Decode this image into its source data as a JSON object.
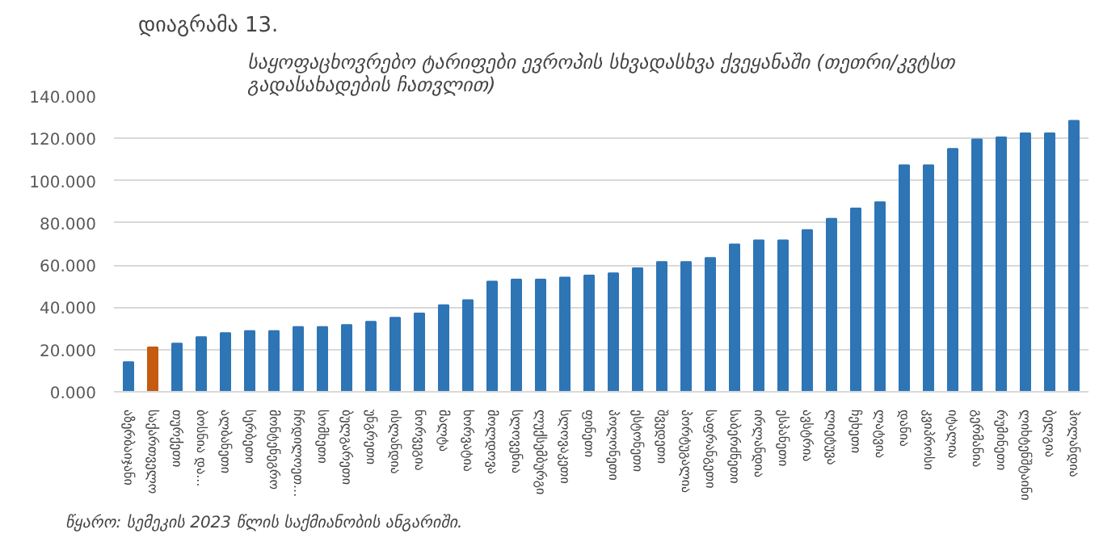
{
  "chart_data": {
    "type": "bar",
    "title": "საყოფაცხოვრებო ტარიფები ევროპის სხვადასხვა ქვეყანაში (თეთრი/კვტსთ\nგადასახადების ჩათვლით)",
    "annotations": [
      "დიაგრამა 13.",
      "წყარო: სემეკის 2023 წლის საქმიანობის ანგარიში."
    ],
    "categories": [
      "აზერბაიჯანი",
      "საქართველო",
      "თურქეთი",
      "ბოსნია და...",
      "ალბანეთი",
      "სერბეთი",
      "მონტენეგრო",
      "ჩრდილოეთ...",
      "სომხეთი",
      "ბულგარეთი",
      "უნგრეთი",
      "ისლანდია",
      "ნორვეგია",
      "მალტა",
      "ხორვატია",
      "მოლდოვა",
      "სლოვენია",
      "ლუქსემბურგი",
      "სლოვაკეთი",
      "ფინეთი",
      "პოლონეთი",
      "ესტონეთი",
      "შვედეთი",
      "პორტუგალია",
      "საფრანგეთი",
      "საბერძნეთი",
      "ირლანდია",
      "ესპანეთი",
      "ავსტრია",
      "ლიეტუვა",
      "ჩეხეთი",
      "ლატვია",
      "დანია",
      "კვიპროსი",
      "იტალია",
      "გერმანია",
      "რუმინეთი",
      "ლიხტენშტაინი",
      "ბელგია",
      "ჰოლანდია"
    ],
    "values": [
      14.1,
      21,
      22.9,
      25.9,
      27.8,
      28.8,
      28.8,
      30.7,
      30.7,
      31.7,
      33.2,
      35.1,
      37.1,
      41,
      43.4,
      52.2,
      53.2,
      53.2,
      54.1,
      55.1,
      56.1,
      58.5,
      61.5,
      61.5,
      63.4,
      69.8,
      71.7,
      71.7,
      76.6,
      82,
      86.8,
      89.8,
      107.3,
      107.3,
      115,
      119.5,
      120.5,
      122.4,
      122.4,
      128.3
    ],
    "colors": [
      "#2e75b6",
      "#c55a11",
      "#2e75b6",
      "#2e75b6",
      "#2e75b6",
      "#2e75b6",
      "#2e75b6",
      "#2e75b6",
      "#2e75b6",
      "#2e75b6",
      "#2e75b6",
      "#2e75b6",
      "#2e75b6",
      "#2e75b6",
      "#2e75b6",
      "#2e75b6",
      "#2e75b6",
      "#2e75b6",
      "#2e75b6",
      "#2e75b6",
      "#2e75b6",
      "#2e75b6",
      "#2e75b6",
      "#2e75b6",
      "#2e75b6",
      "#2e75b6",
      "#2e75b6",
      "#2e75b6",
      "#2e75b6",
      "#2e75b6",
      "#2e75b6",
      "#2e75b6",
      "#2e75b6",
      "#2e75b6",
      "#2e75b6",
      "#2e75b6",
      "#2e75b6",
      "#2e75b6",
      "#2e75b6",
      "#2e75b6"
    ],
    "ylim": [
      0,
      140
    ],
    "yticks": [
      {
        "value": 0,
        "label": "0.000"
      },
      {
        "value": 20,
        "label": "20.000"
      },
      {
        "value": 40,
        "label": "40.000"
      },
      {
        "value": 60,
        "label": "60.000"
      },
      {
        "value": 80,
        "label": "80.000"
      },
      {
        "value": 100,
        "label": "100.000"
      },
      {
        "value": 120,
        "label": "120.000"
      },
      {
        "value": 140,
        "label": "140.000"
      }
    ],
    "grid": "y"
  }
}
